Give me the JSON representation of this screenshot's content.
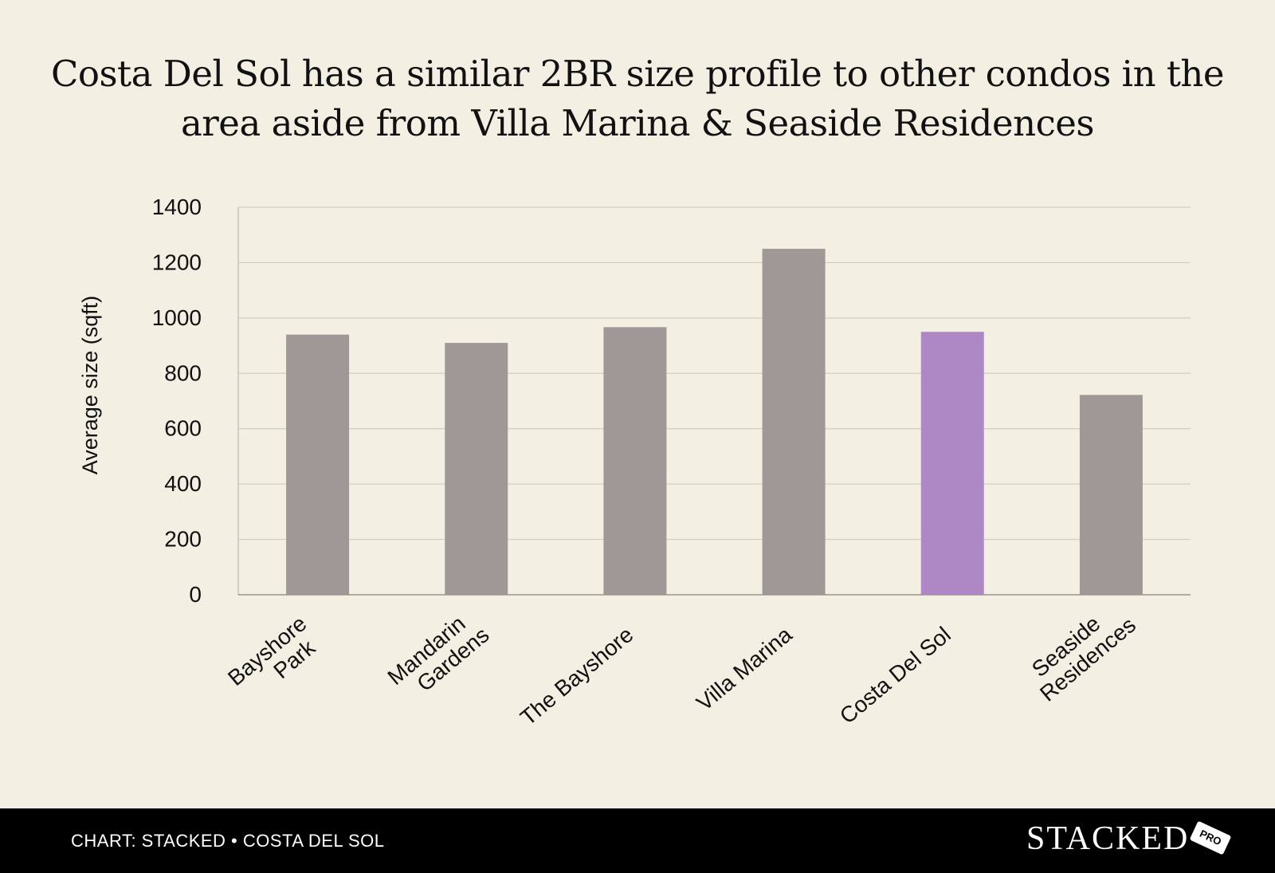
{
  "title_lines": [
    "Costa Del Sol has a similar 2BR size profile to other condos in the",
    "area aside from Villa Marina & Seaside Residences"
  ],
  "chart_data": {
    "type": "bar",
    "title": "Costa Del Sol has a similar 2BR size profile to other condos in the area aside from Villa Marina & Seaside Residences",
    "xlabel": "",
    "ylabel": "Average size (sqft)",
    "ylim": [
      0,
      1400
    ],
    "yticks": [
      0,
      200,
      400,
      600,
      800,
      1000,
      1200,
      1400
    ],
    "grid": true,
    "categories": [
      [
        "Bayshore",
        "Park"
      ],
      [
        "Mandarin",
        "Gardens"
      ],
      [
        "The Bayshore"
      ],
      [
        "Villa Marina"
      ],
      [
        "Costa Del Sol"
      ],
      [
        "Seaside",
        "Residences"
      ]
    ],
    "values": [
      940,
      910,
      967,
      1250,
      950,
      722
    ],
    "colors": [
      "#a09896",
      "#a09896",
      "#a09896",
      "#a09896",
      "#ad88c4",
      "#a09896"
    ],
    "highlight": "Costa Del Sol"
  },
  "footer": {
    "caption": "CHART: STACKED • COSTA DEL SOL",
    "brand": "STACKED",
    "badge": "PRO"
  }
}
